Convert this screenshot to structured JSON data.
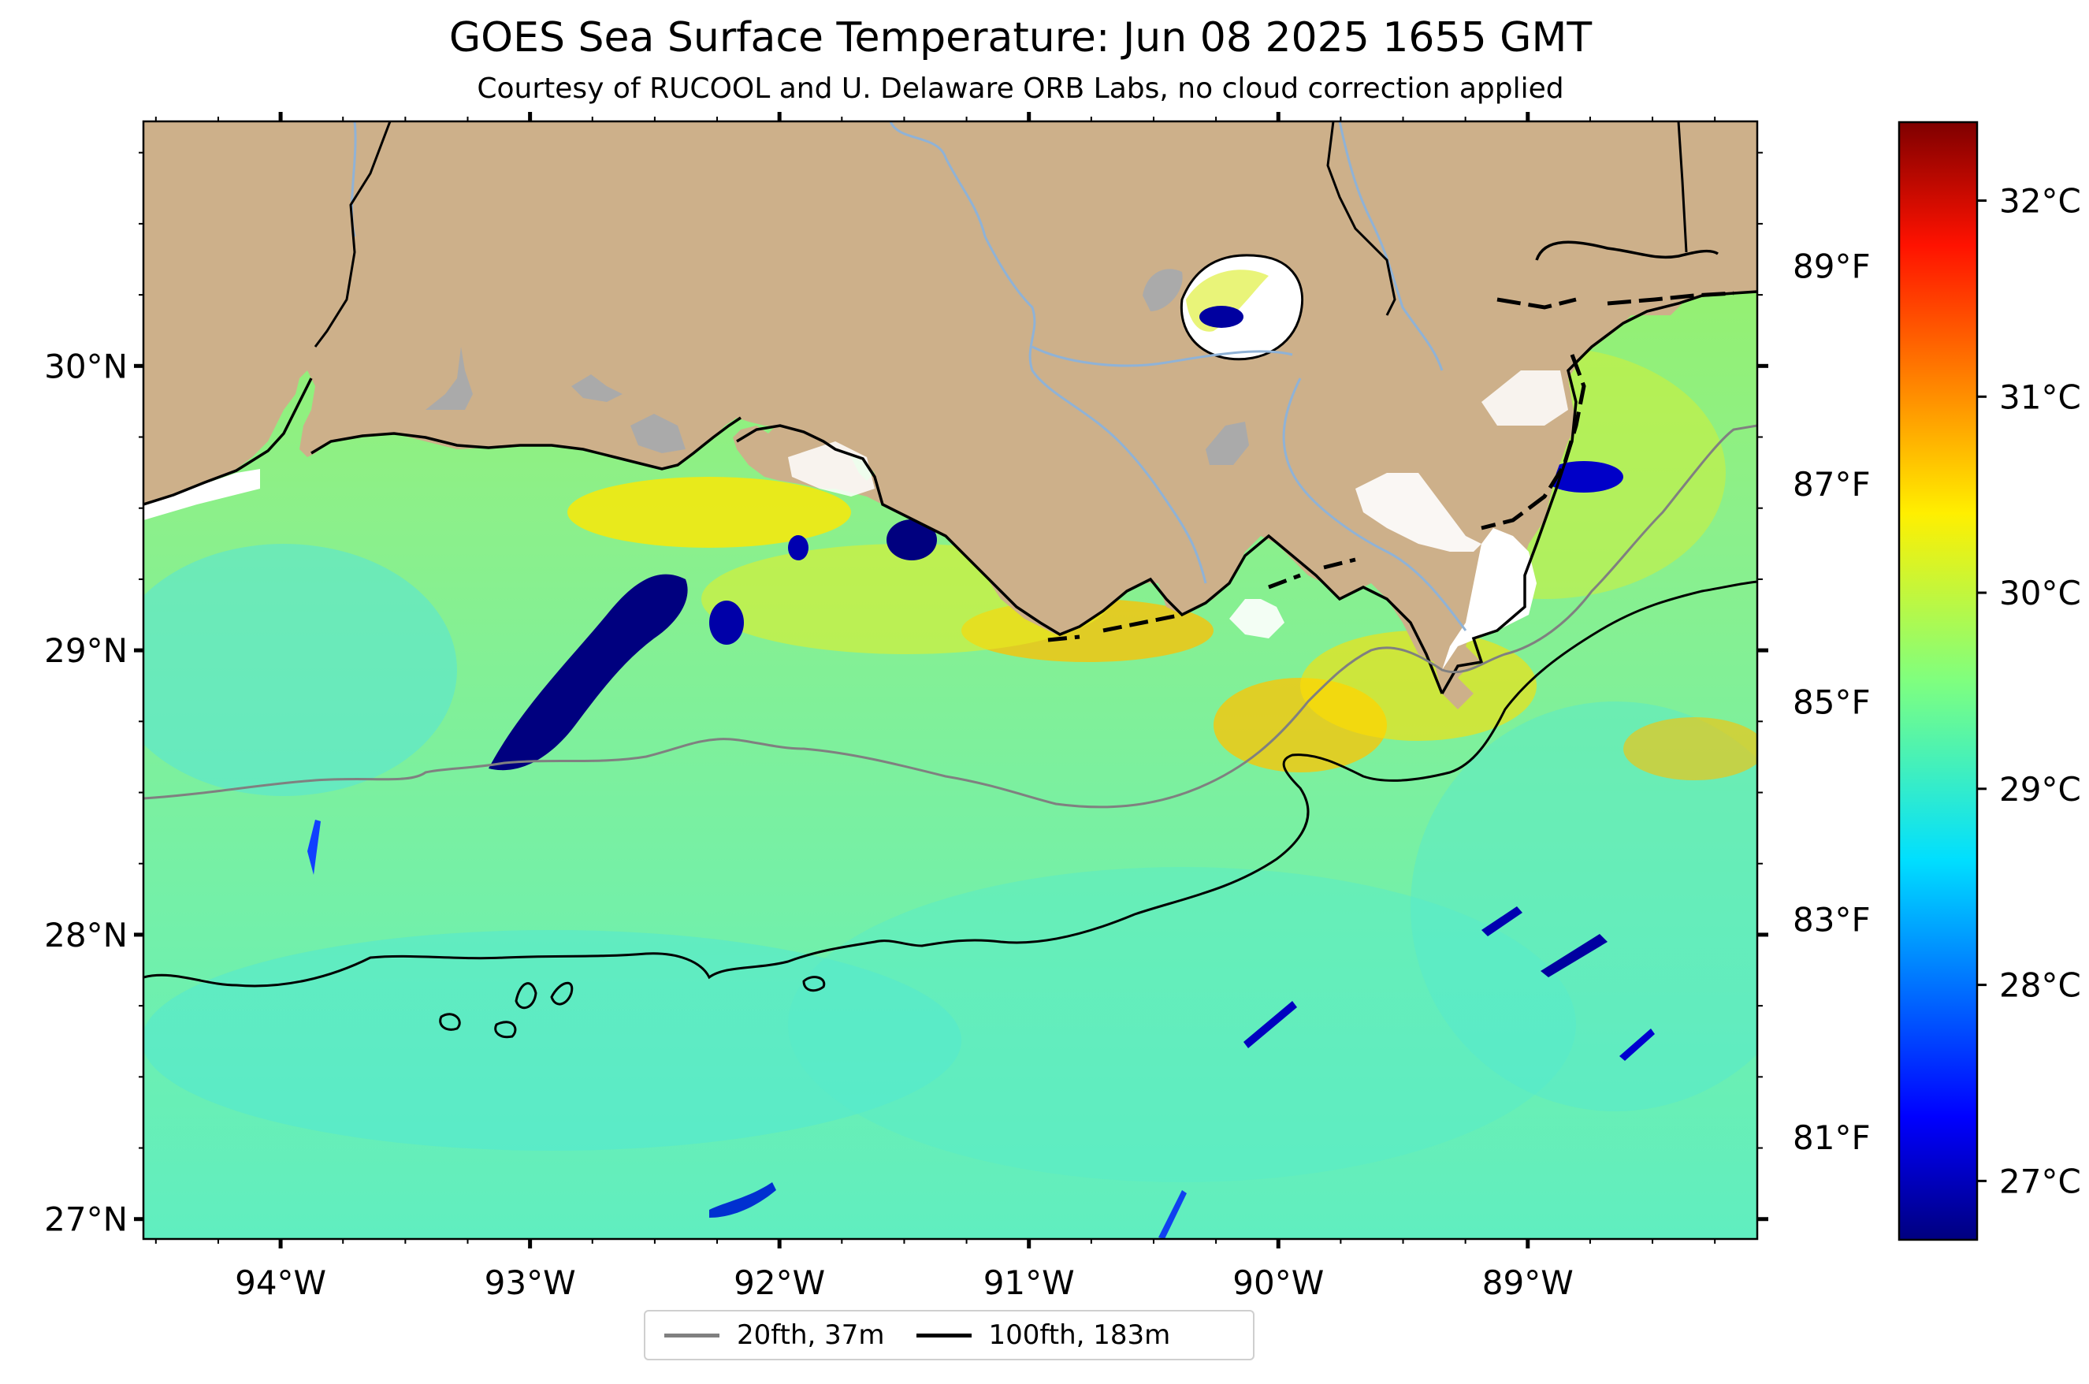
{
  "title": "GOES Sea Surface Temperature: Jun 08 2025 1655 GMT",
  "subtitle": "Courtesy of RUCOOL and U. Delaware ORB Labs, no cloud correction applied",
  "map": {
    "lon_range": [
      -94.55,
      -88.08
    ],
    "lat_range": [
      26.93,
      30.86
    ],
    "lon_ticks": [
      {
        "value": -94,
        "label": "94°W"
      },
      {
        "value": -93,
        "label": "93°W"
      },
      {
        "value": -92,
        "label": "92°W"
      },
      {
        "value": -91,
        "label": "91°W"
      },
      {
        "value": -90,
        "label": "90°W"
      },
      {
        "value": -89,
        "label": "89°W"
      }
    ],
    "lat_ticks": [
      {
        "value": 30,
        "label": "30°N"
      },
      {
        "value": 29,
        "label": "29°N"
      },
      {
        "value": 28,
        "label": "28°N"
      },
      {
        "value": 27,
        "label": "27°N"
      }
    ],
    "fahrenheit_ticks": [
      {
        "value": 89,
        "label": "89°F"
      },
      {
        "value": 87,
        "label": "87°F"
      },
      {
        "value": 85,
        "label": "85°F"
      },
      {
        "value": 83,
        "label": "83°F"
      },
      {
        "value": 81,
        "label": "81°F"
      }
    ],
    "colors": {
      "land": "#cdb08a",
      "lakes": "#aaaaaa",
      "rivers": "#8fb2d6",
      "coast": "#000000",
      "isobath_20fth": "#808080",
      "isobath_100fth": "#000000",
      "cloud_gap": "#ffffff"
    }
  },
  "colorbar": {
    "cmap": "jet",
    "range_c": [
      26.7,
      32.4
    ],
    "ticks": [
      {
        "value": 32,
        "label": "32°C"
      },
      {
        "value": 31,
        "label": "31°C"
      },
      {
        "value": 30,
        "label": "30°C"
      },
      {
        "value": 29,
        "label": "29°C"
      },
      {
        "value": 28,
        "label": "28°C"
      },
      {
        "value": 27,
        "label": "27°C"
      }
    ]
  },
  "legend": {
    "items": [
      {
        "label": "20fth, 37m",
        "color": "#808080"
      },
      {
        "label": "100fth, 183m",
        "color": "#000000"
      }
    ]
  }
}
